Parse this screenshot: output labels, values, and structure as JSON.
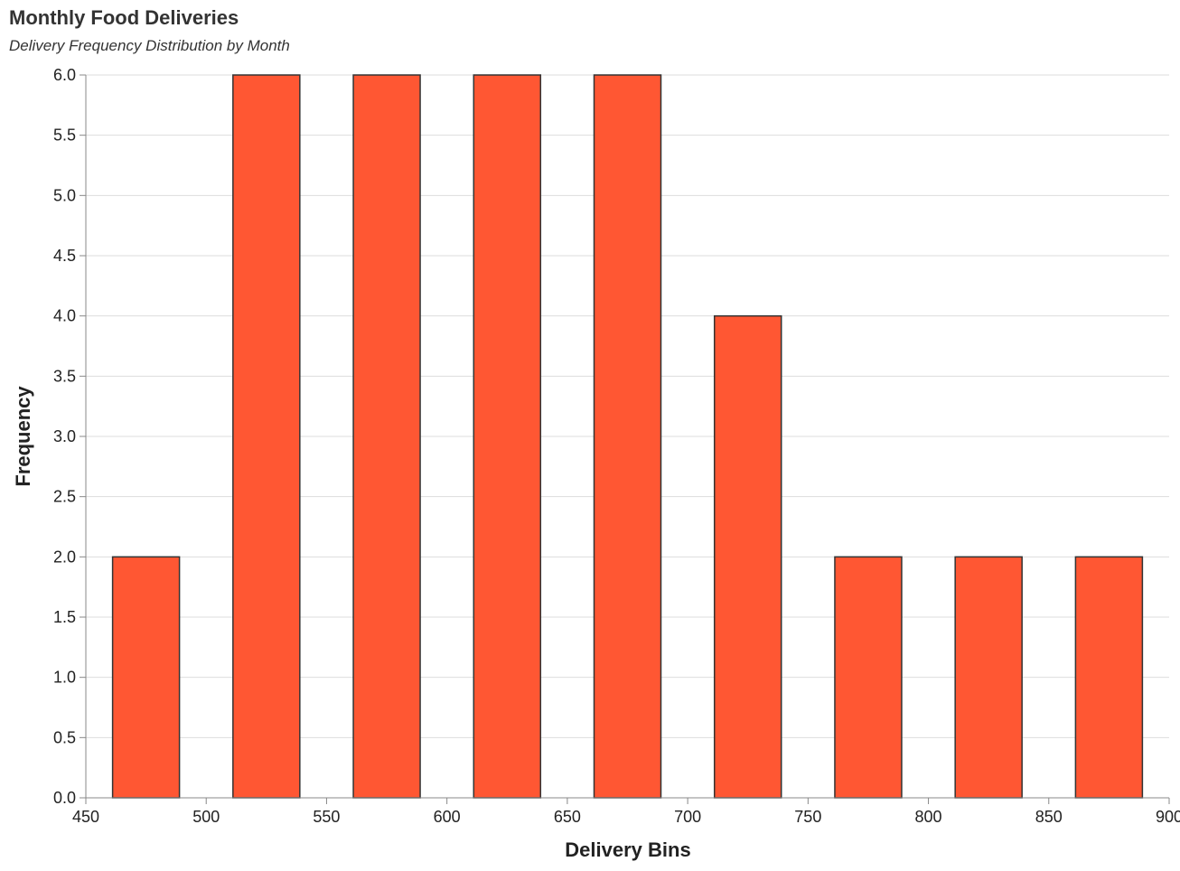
{
  "chart_data": {
    "type": "bar",
    "title": "Monthly Food Deliveries",
    "subtitle": "Delivery Frequency Distribution by Month",
    "xlabel": "Delivery Bins",
    "ylabel": "Frequency",
    "xlim": [
      450,
      900
    ],
    "ylim": [
      0,
      6
    ],
    "x_ticks": [
      450,
      500,
      550,
      600,
      650,
      700,
      750,
      800,
      850,
      900
    ],
    "y_ticks": [
      0,
      0.5,
      1,
      1.5,
      2,
      2.5,
      3,
      3.5,
      4,
      4.5,
      5,
      5.5,
      6
    ],
    "bins": [
      {
        "start": 450,
        "end": 500,
        "value": 2
      },
      {
        "start": 500,
        "end": 550,
        "value": 6
      },
      {
        "start": 550,
        "end": 600,
        "value": 6
      },
      {
        "start": 600,
        "end": 650,
        "value": 6
      },
      {
        "start": 650,
        "end": 700,
        "value": 6
      },
      {
        "start": 700,
        "end": 750,
        "value": 4
      },
      {
        "start": 750,
        "end": 800,
        "value": 2
      },
      {
        "start": 800,
        "end": 850,
        "value": 2
      },
      {
        "start": 850,
        "end": 900,
        "value": 2
      }
    ],
    "grid": true,
    "colors": {
      "bar": "#ff5733",
      "bar_stroke": "#333333",
      "grid": "#dddddd"
    }
  }
}
